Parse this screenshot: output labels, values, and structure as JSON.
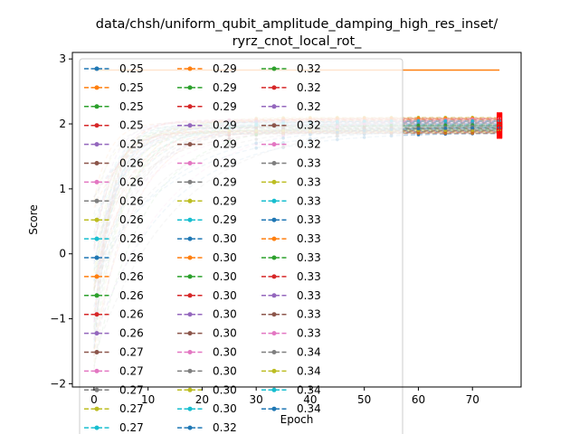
{
  "chart_data": {
    "type": "line",
    "title": "data/chsh/uniform_qubit_amplitude_damping_high_res_inset/\nryrz_cnot_local_rot_",
    "xlabel": "Epoch",
    "ylabel": "Score",
    "xlim": [
      -4,
      79
    ],
    "ylim": [
      -2.05,
      3.1
    ],
    "xticks": [
      0,
      10,
      20,
      30,
      40,
      50,
      60,
      70
    ],
    "yticks": [
      -2,
      -1,
      0,
      1,
      2,
      3
    ],
    "grid": false,
    "legend": {
      "location": "upper-left",
      "columns": 3
    },
    "reference_line": {
      "y": 2.8284,
      "x": [
        0,
        75
      ],
      "color": "#ff7f0e"
    },
    "error_bar_color": "#ff0000",
    "colors": [
      "#1f77b4",
      "#ff7f0e",
      "#2ca02c",
      "#d62728",
      "#9467bd",
      "#8c564b",
      "#e377c2",
      "#7f7f7f",
      "#bcbd22",
      "#17becf"
    ],
    "series": [
      {
        "name": "0.25"
      },
      {
        "name": "0.25"
      },
      {
        "name": "0.25"
      },
      {
        "name": "0.25"
      },
      {
        "name": "0.25"
      },
      {
        "name": "0.26"
      },
      {
        "name": "0.26"
      },
      {
        "name": "0.26"
      },
      {
        "name": "0.26"
      },
      {
        "name": "0.26"
      },
      {
        "name": "0.26"
      },
      {
        "name": "0.26"
      },
      {
        "name": "0.26"
      },
      {
        "name": "0.26"
      },
      {
        "name": "0.26"
      },
      {
        "name": "0.27"
      },
      {
        "name": "0.27"
      },
      {
        "name": "0.27"
      },
      {
        "name": "0.27"
      },
      {
        "name": "0.27"
      },
      {
        "name": "0.29"
      },
      {
        "name": "0.29"
      },
      {
        "name": "0.29"
      },
      {
        "name": "0.29"
      },
      {
        "name": "0.29"
      },
      {
        "name": "0.29"
      },
      {
        "name": "0.29"
      },
      {
        "name": "0.29"
      },
      {
        "name": "0.29"
      },
      {
        "name": "0.29"
      },
      {
        "name": "0.30"
      },
      {
        "name": "0.30"
      },
      {
        "name": "0.30"
      },
      {
        "name": "0.30"
      },
      {
        "name": "0.30"
      },
      {
        "name": "0.30"
      },
      {
        "name": "0.30"
      },
      {
        "name": "0.30"
      },
      {
        "name": "0.30"
      },
      {
        "name": "0.30"
      },
      {
        "name": "0.32"
      },
      {
        "name": "0.32"
      },
      {
        "name": "0.32"
      },
      {
        "name": "0.32"
      },
      {
        "name": "0.32"
      },
      {
        "name": "0.32"
      },
      {
        "name": "0.32"
      },
      {
        "name": "0.33"
      },
      {
        "name": "0.33"
      },
      {
        "name": "0.33"
      },
      {
        "name": "0.33"
      },
      {
        "name": "0.33"
      },
      {
        "name": "0.33"
      },
      {
        "name": "0.33"
      },
      {
        "name": "0.33"
      },
      {
        "name": "0.33"
      },
      {
        "name": "0.33"
      },
      {
        "name": "0.34"
      },
      {
        "name": "0.34"
      },
      {
        "name": "0.34"
      },
      {
        "name": "0.34"
      }
    ],
    "final_values_range": [
      1.85,
      2.1
    ]
  }
}
